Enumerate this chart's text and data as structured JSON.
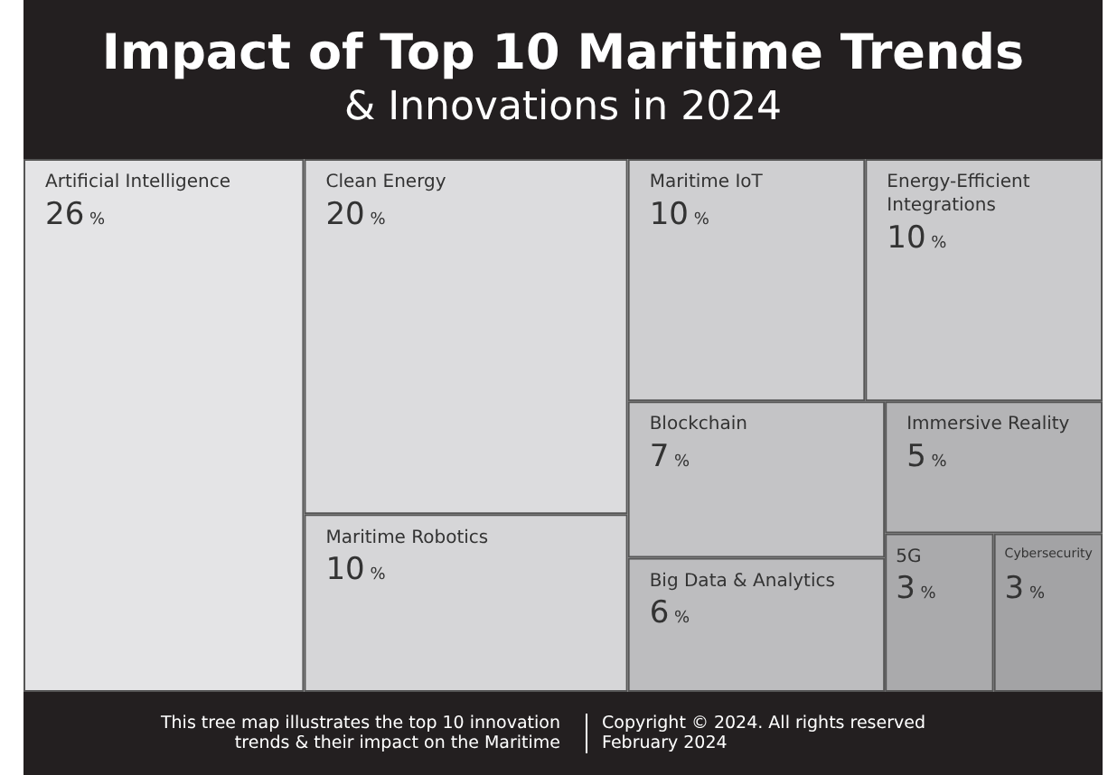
{
  "chart_data": {
    "type": "other",
    "title": "Impact of Top 10 Maritime Trends",
    "subtitle": "& Innovations in 2024",
    "categories": [
      "Artificial Intelligence",
      "Clean Energy",
      "Maritime Robotics",
      "Maritime IoT",
      "Energy-Efficient Integrations",
      "Blockchain",
      "Big Data & Analytics",
      "Immersive Reality",
      "5G",
      "Cybersecurity"
    ],
    "values": [
      26,
      20,
      10,
      10,
      10,
      7,
      6,
      5,
      3,
      3
    ],
    "value_labels": [
      "26 %",
      "20 %",
      "10 %",
      "10 %",
      "10 %",
      "7 %",
      "6 %",
      "5 %",
      "3 %",
      "3 %"
    ],
    "colors": [
      "#e4e4e6",
      "#dcdcde",
      "#d6d6d8",
      "#cfcfd1",
      "#cbcbcd",
      "#c4c4c6",
      "#bdbdbf",
      "#b4b4b6",
      "#aaaaac",
      "#a3a3a5"
    ],
    "annotations": [
      "This tree map illustrates the top 10 innovation trends & their impact on the Maritime",
      "Copyright © 2024. All rights reserved",
      "February 2024"
    ]
  }
}
